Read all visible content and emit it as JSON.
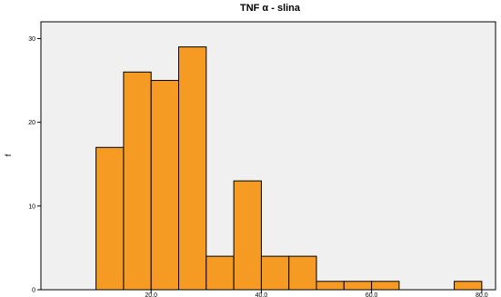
{
  "chart_data": {
    "type": "bar",
    "title": "TNF α - slina",
    "ylabel": "f",
    "xlabel": "",
    "bins": [
      {
        "x0": 10,
        "x1": 15,
        "count": 17
      },
      {
        "x0": 15,
        "x1": 20,
        "count": 26
      },
      {
        "x0": 20,
        "x1": 25,
        "count": 25
      },
      {
        "x0": 25,
        "x1": 30,
        "count": 29
      },
      {
        "x0": 30,
        "x1": 35,
        "count": 4
      },
      {
        "x0": 35,
        "x1": 40,
        "count": 13
      },
      {
        "x0": 40,
        "x1": 45,
        "count": 4
      },
      {
        "x0": 45,
        "x1": 50,
        "count": 4
      },
      {
        "x0": 50,
        "x1": 55,
        "count": 1
      },
      {
        "x0": 55,
        "x1": 60,
        "count": 1
      },
      {
        "x0": 60,
        "x1": 65,
        "count": 1
      },
      {
        "x0": 75,
        "x1": 80,
        "count": 1
      }
    ],
    "xlim": [
      0,
      82.5
    ],
    "ylim": [
      0,
      32
    ],
    "x_ticks": [
      20,
      40,
      60,
      80
    ],
    "x_tick_labels": [
      "20.0",
      "40.0",
      "60.0",
      "80.0"
    ],
    "y_ticks": [
      0,
      10,
      20,
      30
    ],
    "y_tick_labels": [
      "0",
      "10",
      "20",
      "30"
    ],
    "grid": false,
    "colors": {
      "bar_fill": "#f59b24",
      "bar_stroke": "#000000",
      "plot_background": "#f0f0f0",
      "frame": "#000000"
    }
  }
}
